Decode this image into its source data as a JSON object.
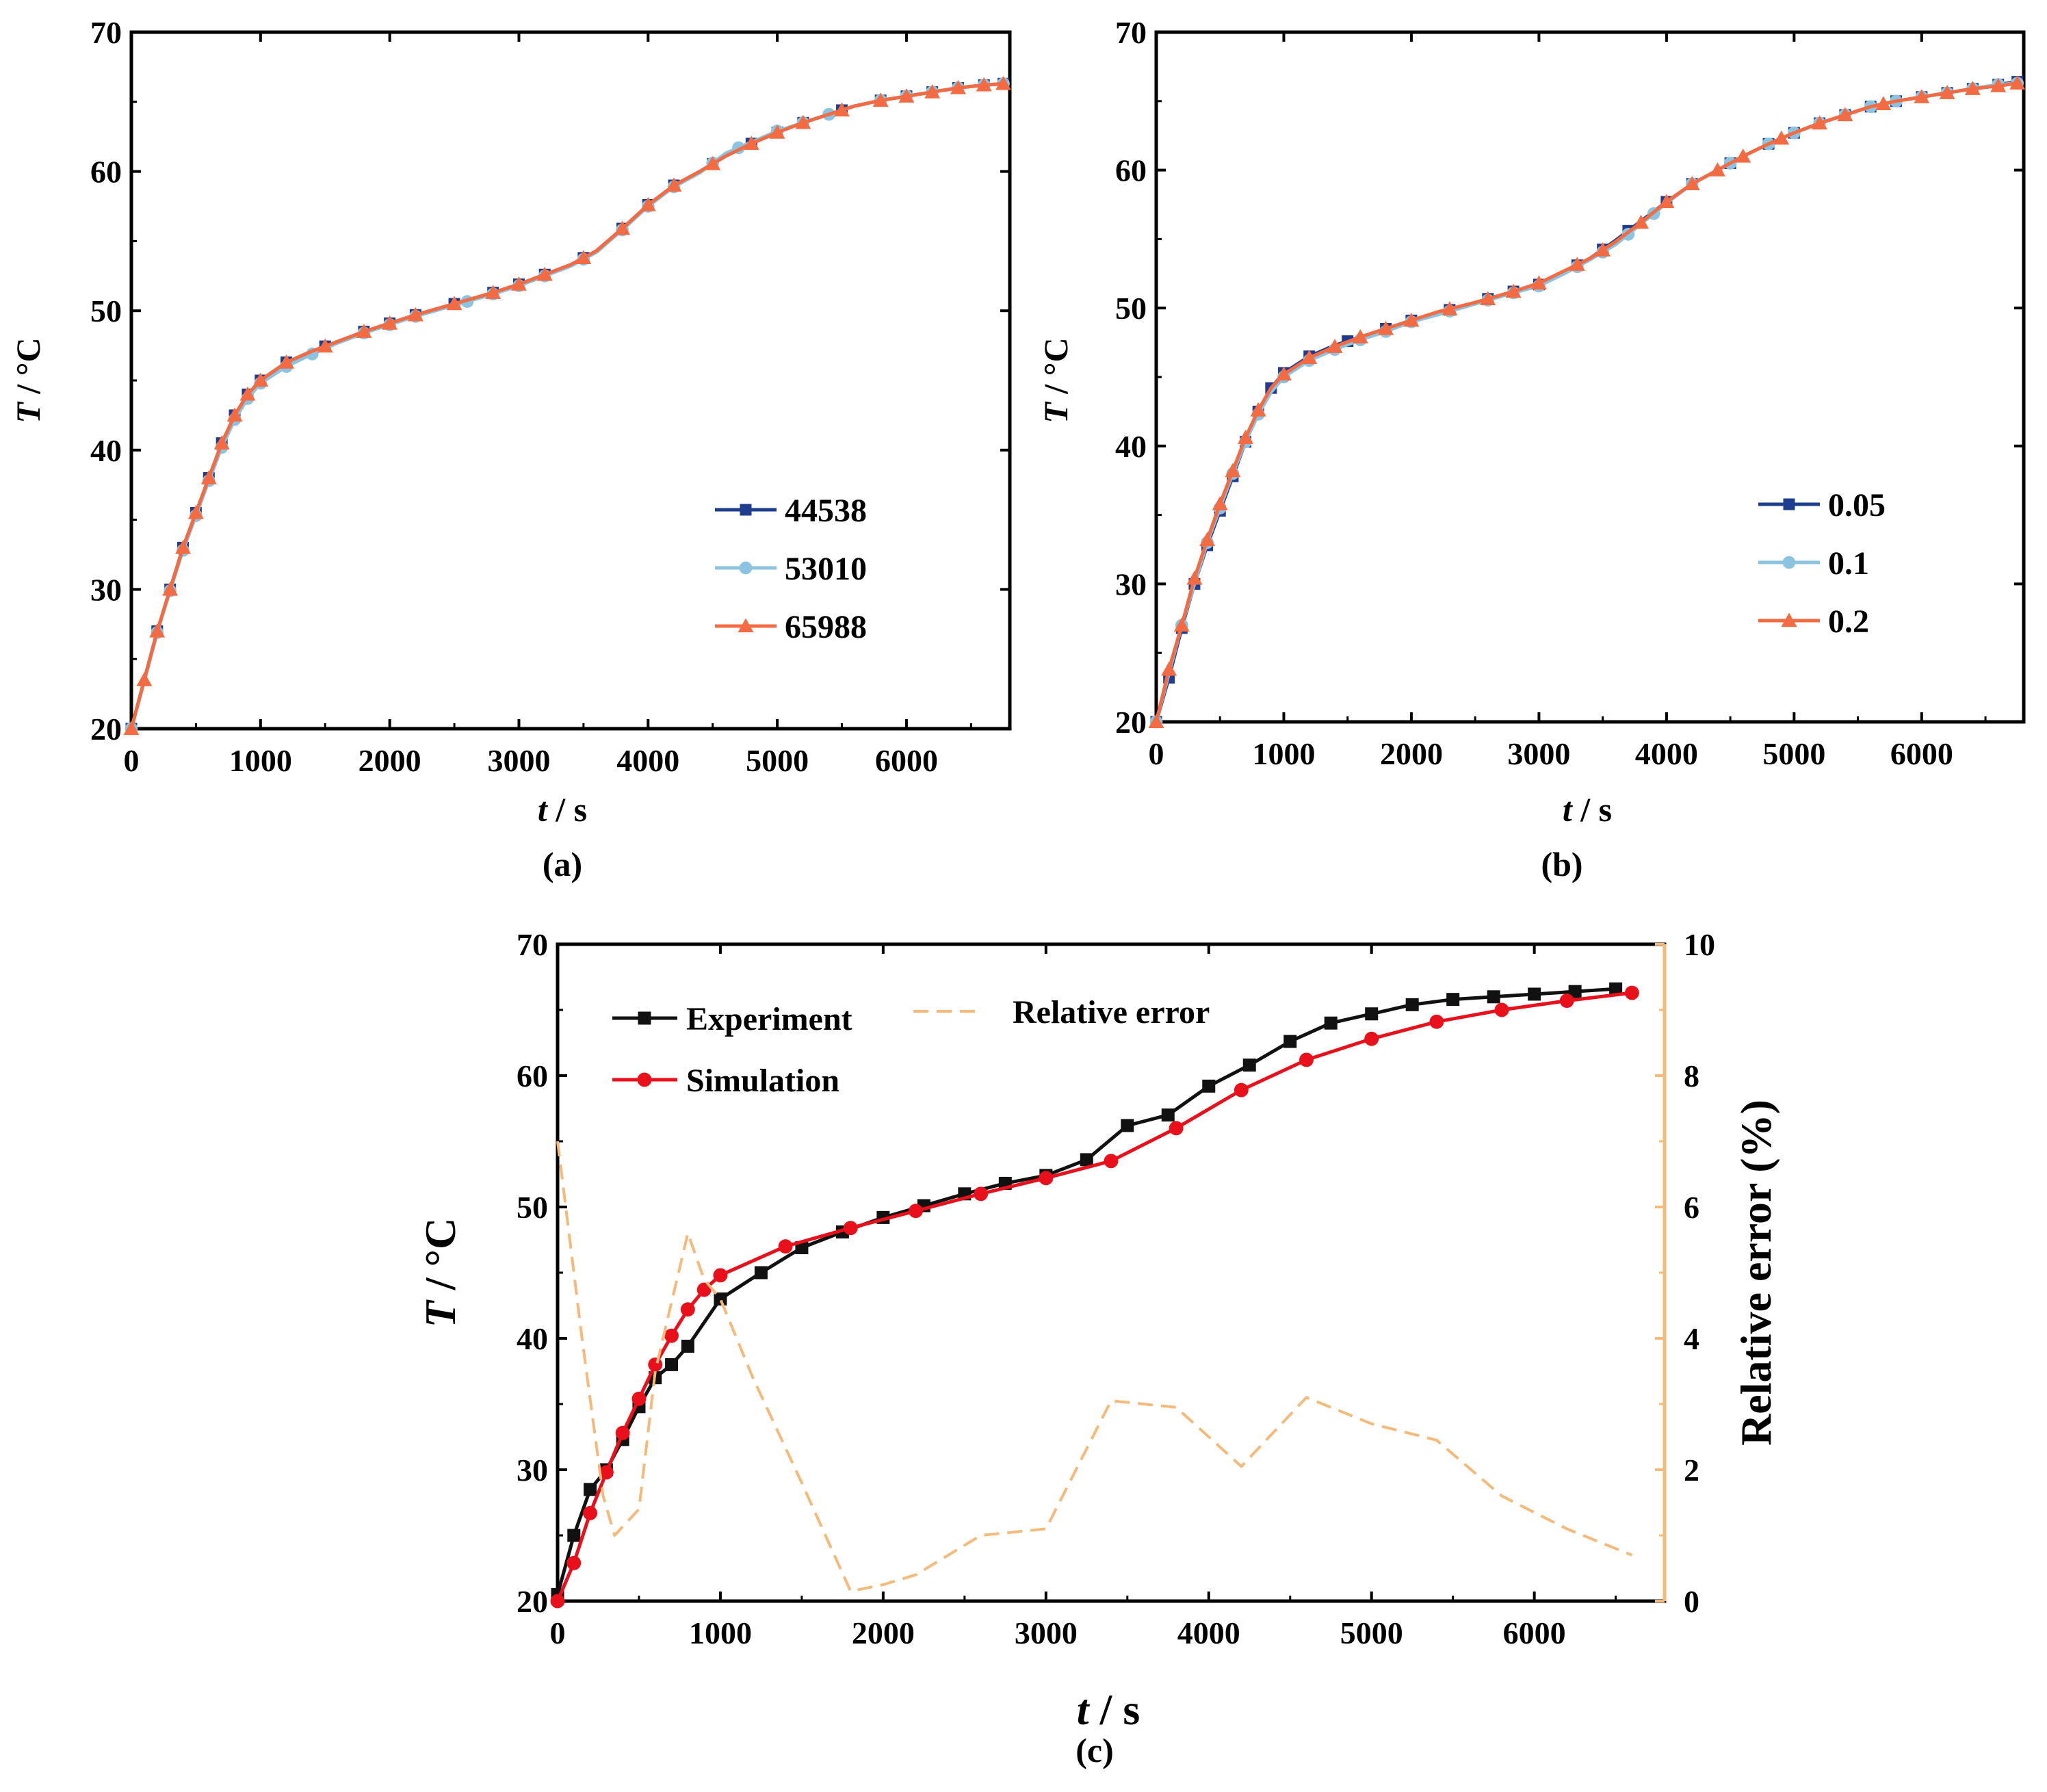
{
  "colors": {
    "navy": "#1f3d8f",
    "lightblue": "#8cc3e0",
    "coral": "#f26b43",
    "experiment": "#111111",
    "simulation": "#e8111b",
    "error": "#f5b97a"
  },
  "chart_data": [
    {
      "id": "a",
      "caption": "(a)",
      "type": "line",
      "xlabel": "t / s",
      "xlabel_var": "t",
      "xlabel_unit": " / s",
      "ylabel": "T / °C",
      "ylabel_var": "T",
      "ylabel_unit": " / °C",
      "xlim": [
        0,
        6800
      ],
      "ylim": [
        20,
        70
      ],
      "xticks": [
        0,
        1000,
        2000,
        3000,
        4000,
        5000,
        6000
      ],
      "yticks": [
        20,
        30,
        40,
        50,
        60,
        70
      ],
      "legend_position": "lower-right",
      "series": [
        {
          "name": "44538",
          "color": "#1f3d8f",
          "marker": "square",
          "x": [
            0,
            100,
            200,
            300,
            400,
            500,
            600,
            700,
            800,
            900,
            1000,
            1200,
            1400,
            1600,
            1800,
            2000,
            2200,
            2500,
            2800,
            3000,
            3200,
            3400,
            3600,
            3800,
            4000,
            4200,
            4400,
            4600,
            4800,
            5000,
            5200,
            5400,
            5600,
            5800,
            6000,
            6200,
            6400,
            6600,
            6750
          ],
          "y": [
            20,
            23.5,
            27,
            30,
            33,
            35.5,
            38,
            40.5,
            42.5,
            44,
            45,
            46.3,
            47.1,
            47.8,
            48.5,
            49.1,
            49.7,
            50.5,
            51.3,
            51.9,
            52.6,
            53.3,
            54.3,
            55.9,
            57.6,
            59,
            60,
            61.1,
            62,
            62.8,
            63.5,
            64.1,
            64.7,
            65.1,
            65.4,
            65.7,
            66,
            66.2,
            66.3
          ],
          "markers": [
            0,
            200,
            300,
            400,
            500,
            600,
            700,
            800,
            900,
            1000,
            1200,
            1500,
            1800,
            2000,
            2200,
            2500,
            2800,
            3000,
            3200,
            3500,
            3800,
            4000,
            4200,
            4500,
            4800,
            5000,
            5200,
            5500,
            5800,
            6000,
            6200,
            6400,
            6600,
            6750
          ]
        },
        {
          "name": "53010",
          "color": "#8cc3e0",
          "marker": "circle",
          "x": [
            0,
            100,
            200,
            300,
            400,
            500,
            600,
            700,
            800,
            900,
            1000,
            1200,
            1400,
            1600,
            1800,
            2000,
            2200,
            2500,
            2800,
            3000,
            3200,
            3400,
            3600,
            3800,
            4000,
            4200,
            4400,
            4600,
            4800,
            5000,
            5200,
            5400,
            5600,
            5800,
            6000,
            6200,
            6400,
            6600,
            6750
          ],
          "y": [
            20,
            23.4,
            26.9,
            29.9,
            32.8,
            35.3,
            37.8,
            40.2,
            42.2,
            43.7,
            44.8,
            46,
            46.9,
            47.7,
            48.4,
            49,
            49.6,
            50.4,
            51.2,
            51.8,
            52.5,
            53.2,
            54.2,
            55.8,
            57.5,
            58.9,
            59.9,
            61.3,
            62.1,
            62.9,
            63.5,
            64.1,
            64.7,
            65.1,
            65.4,
            65.7,
            66,
            66.2,
            66.3
          ],
          "markers": [
            0,
            200,
            300,
            400,
            500,
            600,
            700,
            800,
            900,
            1000,
            1200,
            1400,
            1800,
            2000,
            2200,
            2600,
            2800,
            3000,
            3200,
            3500,
            3800,
            4000,
            4200,
            4500,
            4700,
            5000,
            5200,
            5400,
            5800,
            6000,
            6200,
            6400,
            6600,
            6750
          ]
        },
        {
          "name": "65988",
          "color": "#f26b43",
          "marker": "triangle",
          "x": [
            0,
            100,
            200,
            300,
            400,
            500,
            600,
            700,
            800,
            900,
            1000,
            1200,
            1400,
            1600,
            1800,
            2000,
            2200,
            2500,
            2800,
            3000,
            3200,
            3400,
            3600,
            3800,
            4000,
            4200,
            4400,
            4600,
            4800,
            5000,
            5200,
            5400,
            5600,
            5800,
            6000,
            6200,
            6400,
            6600,
            6750
          ],
          "y": [
            20,
            23.5,
            27,
            30,
            33,
            35.5,
            38,
            40.5,
            42.5,
            44,
            45,
            46.3,
            47.1,
            47.8,
            48.5,
            49.1,
            49.7,
            50.5,
            51.3,
            51.9,
            52.6,
            53.3,
            54.3,
            55.9,
            57.6,
            59,
            60,
            61.1,
            62,
            62.8,
            63.5,
            64.1,
            64.7,
            65.1,
            65.4,
            65.7,
            66,
            66.2,
            66.3
          ],
          "markers": [
            0,
            100,
            200,
            300,
            400,
            500,
            600,
            700,
            800,
            900,
            1000,
            1200,
            1500,
            1800,
            2000,
            2200,
            2500,
            2800,
            3000,
            3200,
            3500,
            3800,
            4000,
            4200,
            4500,
            4800,
            5000,
            5200,
            5500,
            5800,
            6000,
            6200,
            6400,
            6600,
            6750
          ]
        }
      ]
    },
    {
      "id": "b",
      "caption": "(b)",
      "type": "line",
      "xlabel": "t / s",
      "xlabel_var": "t",
      "xlabel_unit": " / s",
      "ylabel": "T / °C",
      "ylabel_var": "T",
      "ylabel_unit": " / °C",
      "xlim": [
        0,
        6800
      ],
      "ylim": [
        20,
        70
      ],
      "xticks": [
        0,
        1000,
        2000,
        3000,
        4000,
        5000,
        6000
      ],
      "yticks": [
        20,
        30,
        40,
        50,
        60,
        70
      ],
      "legend_position": "lower-right",
      "series": [
        {
          "name": "0.05",
          "color": "#1f3d8f",
          "marker": "square",
          "x": [
            0,
            100,
            200,
            300,
            400,
            500,
            600,
            700,
            800,
            900,
            1000,
            1200,
            1400,
            1600,
            1800,
            2000,
            2200,
            2500,
            2800,
            3000,
            3200,
            3400,
            3600,
            3800,
            4000,
            4200,
            4400,
            4600,
            4800,
            5000,
            5200,
            5400,
            5600,
            5800,
            6000,
            6200,
            6400,
            6600,
            6750
          ],
          "y": [
            20,
            23.2,
            26.8,
            30,
            32.8,
            35.3,
            37.8,
            40.3,
            42.5,
            44.2,
            45.3,
            46.5,
            47.3,
            47.9,
            48.5,
            49.1,
            49.6,
            50.4,
            51.2,
            51.7,
            52.6,
            53.6,
            54.9,
            56.3,
            57.7,
            59,
            60,
            61,
            61.9,
            62.7,
            63.4,
            64,
            64.6,
            65,
            65.3,
            65.6,
            65.9,
            66.2,
            66.4
          ],
          "markers": [
            0,
            100,
            200,
            300,
            400,
            500,
            600,
            700,
            800,
            900,
            1000,
            1200,
            1500,
            1800,
            2000,
            2300,
            2600,
            2800,
            3000,
            3300,
            3500,
            3700,
            4000,
            4200,
            4500,
            4800,
            5000,
            5200,
            5400,
            5600,
            5800,
            6000,
            6200,
            6400,
            6600,
            6750
          ]
        },
        {
          "name": "0.1",
          "color": "#8cc3e0",
          "marker": "circle",
          "x": [
            0,
            100,
            200,
            300,
            400,
            500,
            600,
            700,
            800,
            900,
            1000,
            1200,
            1400,
            1600,
            1800,
            2000,
            2200,
            2500,
            2800,
            3000,
            3200,
            3400,
            3600,
            3800,
            4000,
            4200,
            4400,
            4600,
            4800,
            5000,
            5200,
            5400,
            5600,
            5800,
            6000,
            6200,
            6400,
            6600,
            6750
          ],
          "y": [
            20,
            23.5,
            27,
            30,
            33,
            35.5,
            38,
            40.3,
            42.3,
            43.9,
            45,
            46.2,
            47,
            47.7,
            48.3,
            49,
            49.5,
            50.3,
            51.1,
            51.6,
            52.5,
            53.5,
            54.6,
            56.1,
            57.6,
            59,
            60,
            61,
            61.9,
            62.7,
            63.4,
            64,
            64.6,
            65,
            65.3,
            65.6,
            65.9,
            66.2,
            66.3
          ],
          "markers": [
            0,
            200,
            400,
            500,
            600,
            700,
            800,
            1000,
            1200,
            1400,
            1600,
            1800,
            2000,
            2300,
            2600,
            2800,
            3000,
            3300,
            3500,
            3700,
            3900,
            4200,
            4500,
            4800,
            5000,
            5200,
            5400,
            5600,
            5800,
            6000,
            6200,
            6400,
            6600,
            6750
          ]
        },
        {
          "name": "0.2",
          "color": "#f26b43",
          "marker": "triangle",
          "x": [
            0,
            100,
            200,
            300,
            400,
            500,
            600,
            700,
            800,
            900,
            1000,
            1200,
            1400,
            1600,
            1800,
            2000,
            2200,
            2500,
            2800,
            3000,
            3200,
            3400,
            3600,
            3800,
            4000,
            4200,
            4400,
            4600,
            4800,
            5000,
            5200,
            5400,
            5600,
            5800,
            6000,
            6200,
            6400,
            6600,
            6750
          ],
          "y": [
            20,
            23.8,
            27,
            30.4,
            33.2,
            35.8,
            38.2,
            40.6,
            42.6,
            44.2,
            45.2,
            46.4,
            47.2,
            47.9,
            48.5,
            49.1,
            49.7,
            50.4,
            51.2,
            51.8,
            52.7,
            53.6,
            54.8,
            56.2,
            57.7,
            59,
            60,
            61,
            61.9,
            62.7,
            63.4,
            64,
            64.6,
            65,
            65.3,
            65.6,
            65.9,
            66.1,
            66.3
          ],
          "markers": [
            0,
            100,
            200,
            300,
            400,
            500,
            600,
            700,
            800,
            1000,
            1200,
            1400,
            1600,
            1800,
            2000,
            2300,
            2600,
            2800,
            3000,
            3300,
            3500,
            3800,
            4000,
            4200,
            4400,
            4600,
            4900,
            5200,
            5400,
            5700,
            6000,
            6200,
            6400,
            6600,
            6750
          ]
        }
      ]
    },
    {
      "id": "c",
      "caption": "(c)",
      "type": "line",
      "xlabel": "t / s",
      "xlabel_var": "t",
      "xlabel_unit": " / s",
      "ylabel": "T / °C",
      "ylabel_var": "T",
      "ylabel_unit": " / °C",
      "ylabel_right": "Relative error (%)",
      "xlim": [
        0,
        6800
      ],
      "ylim": [
        20,
        70
      ],
      "ylim_right": [
        0,
        10
      ],
      "xticks": [
        0,
        1000,
        2000,
        3000,
        4000,
        5000,
        6000
      ],
      "yticks": [
        20,
        30,
        40,
        50,
        60,
        70
      ],
      "yticks_right": [
        0,
        2,
        4,
        6,
        8,
        10
      ],
      "legend_position": "top-left",
      "series": [
        {
          "name": "Experiment",
          "color": "#111111",
          "marker": "square",
          "axis": "left",
          "x": [
            0,
            100,
            200,
            300,
            400,
            500,
            600,
            700,
            800,
            1000,
            1250,
            1500,
            1750,
            2000,
            2250,
            2500,
            2750,
            3000,
            3250,
            3500,
            3750,
            4000,
            4250,
            4500,
            4750,
            5000,
            5250,
            5500,
            5750,
            6000,
            6250,
            6500
          ],
          "y": [
            20.5,
            25,
            28.5,
            30,
            32.3,
            34.8,
            37,
            38,
            39.4,
            43,
            45,
            46.9,
            48.1,
            49.2,
            50.1,
            51,
            51.8,
            52.4,
            53.6,
            56.2,
            57,
            59.2,
            60.8,
            62.6,
            64,
            64.7,
            65.4,
            65.8,
            66,
            66.2,
            66.4,
            66.6
          ]
        },
        {
          "name": "Simulation",
          "color": "#e8111b",
          "marker": "circle",
          "axis": "left",
          "x": [
            0,
            100,
            200,
            300,
            400,
            500,
            600,
            700,
            800,
            900,
            1000,
            1400,
            1800,
            2200,
            2600,
            3000,
            3400,
            3800,
            4200,
            4600,
            5000,
            5400,
            5800,
            6200,
            6600
          ],
          "y": [
            20,
            22.9,
            26.7,
            29.8,
            32.8,
            35.4,
            38,
            40.2,
            42.2,
            43.7,
            44.8,
            47,
            48.4,
            49.7,
            51,
            52.2,
            53.5,
            56,
            58.9,
            61.2,
            62.8,
            64.1,
            65,
            65.7,
            66.3
          ]
        },
        {
          "name": "Relative error",
          "color": "#f5b97a",
          "dash": true,
          "axis": "right",
          "x": [
            0,
            150,
            280,
            350,
            500,
            600,
            800,
            900,
            1000,
            1200,
            1500,
            1800,
            2000,
            2200,
            2600,
            3000,
            3400,
            3800,
            4200,
            4600,
            5000,
            5400,
            5800,
            6200,
            6600
          ],
          "y": [
            7,
            4,
            1.6,
            1.0,
            1.4,
            3.5,
            5.6,
            4.9,
            4.6,
            3.4,
            1.8,
            0.15,
            0.25,
            0.4,
            1.0,
            1.1,
            3.05,
            2.95,
            2.05,
            3.1,
            2.7,
            2.45,
            1.6,
            1.1,
            0.7
          ]
        }
      ]
    }
  ]
}
